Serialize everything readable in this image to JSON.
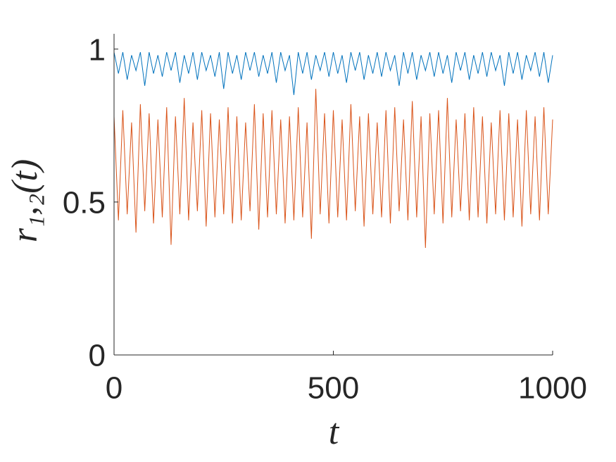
{
  "chart_data": {
    "type": "line",
    "xlabel": "t",
    "ylabel": "r₁,₂(t)",
    "xlim": [
      0,
      1000
    ],
    "ylim": [
      0,
      1.05
    ],
    "xticks": [
      0,
      500,
      1000
    ],
    "yticks": [
      0,
      0.5,
      1
    ],
    "x": [
      0,
      10,
      20,
      30,
      40,
      50,
      60,
      70,
      80,
      90,
      100,
      110,
      120,
      130,
      140,
      150,
      160,
      170,
      180,
      190,
      200,
      210,
      220,
      230,
      240,
      250,
      260,
      270,
      280,
      290,
      300,
      310,
      320,
      330,
      340,
      350,
      360,
      370,
      380,
      390,
      400,
      410,
      420,
      430,
      440,
      450,
      460,
      470,
      480,
      490,
      500,
      510,
      520,
      530,
      540,
      550,
      560,
      570,
      580,
      590,
      600,
      610,
      620,
      630,
      640,
      650,
      660,
      670,
      680,
      690,
      700,
      710,
      720,
      730,
      740,
      750,
      760,
      770,
      780,
      790,
      800,
      810,
      820,
      830,
      840,
      850,
      860,
      870,
      880,
      890,
      900,
      910,
      920,
      930,
      940,
      950,
      960,
      970,
      980,
      990,
      1000
    ],
    "series": [
      {
        "color": "#0072bd",
        "values": [
          0.99,
          0.92,
          0.99,
          0.9,
          0.98,
          0.93,
          0.99,
          0.88,
          0.99,
          0.92,
          0.98,
          0.91,
          0.99,
          0.93,
          0.99,
          0.89,
          0.98,
          0.92,
          0.99,
          0.9,
          0.99,
          0.93,
          0.98,
          0.91,
          0.99,
          0.87,
          0.99,
          0.92,
          0.98,
          0.9,
          0.99,
          0.93,
          0.99,
          0.91,
          0.98,
          0.92,
          0.99,
          0.89,
          0.99,
          0.93,
          0.98,
          0.85,
          0.99,
          0.92,
          0.99,
          0.9,
          0.98,
          0.93,
          0.99,
          0.91,
          0.99,
          0.92,
          0.98,
          0.89,
          0.99,
          0.93,
          0.99,
          0.9,
          0.98,
          0.92,
          0.99,
          0.91,
          0.99,
          0.93,
          0.98,
          0.88,
          0.99,
          0.92,
          0.99,
          0.9,
          0.98,
          0.93,
          0.99,
          0.91,
          0.99,
          0.92,
          0.98,
          0.89,
          0.99,
          0.93,
          0.99,
          0.9,
          0.98,
          0.92,
          0.99,
          0.91,
          0.99,
          0.93,
          0.98,
          0.88,
          0.99,
          0.92,
          0.99,
          0.9,
          0.98,
          0.93,
          0.99,
          0.91,
          0.99,
          0.89,
          0.98
        ]
      },
      {
        "color": "#d95319",
        "values": [
          0.78,
          0.44,
          0.8,
          0.46,
          0.76,
          0.4,
          0.82,
          0.47,
          0.79,
          0.43,
          0.77,
          0.45,
          0.81,
          0.36,
          0.78,
          0.46,
          0.84,
          0.44,
          0.76,
          0.47,
          0.8,
          0.42,
          0.79,
          0.45,
          0.77,
          0.46,
          0.81,
          0.43,
          0.78,
          0.44,
          0.76,
          0.47,
          0.82,
          0.41,
          0.79,
          0.45,
          0.8,
          0.46,
          0.77,
          0.43,
          0.78,
          0.44,
          0.81,
          0.45,
          0.76,
          0.38,
          0.87,
          0.46,
          0.79,
          0.43,
          0.8,
          0.45,
          0.77,
          0.44,
          0.82,
          0.47,
          0.78,
          0.42,
          0.79,
          0.46,
          0.76,
          0.45,
          0.8,
          0.43,
          0.81,
          0.47,
          0.77,
          0.44,
          0.83,
          0.45,
          0.78,
          0.35,
          0.79,
          0.46,
          0.8,
          0.43,
          0.84,
          0.45,
          0.77,
          0.47,
          0.79,
          0.44,
          0.81,
          0.45,
          0.78,
          0.43,
          0.76,
          0.46,
          0.8,
          0.44,
          0.79,
          0.45,
          0.77,
          0.42,
          0.8,
          0.46,
          0.78,
          0.44,
          0.81,
          0.46,
          0.77
        ]
      }
    ]
  }
}
